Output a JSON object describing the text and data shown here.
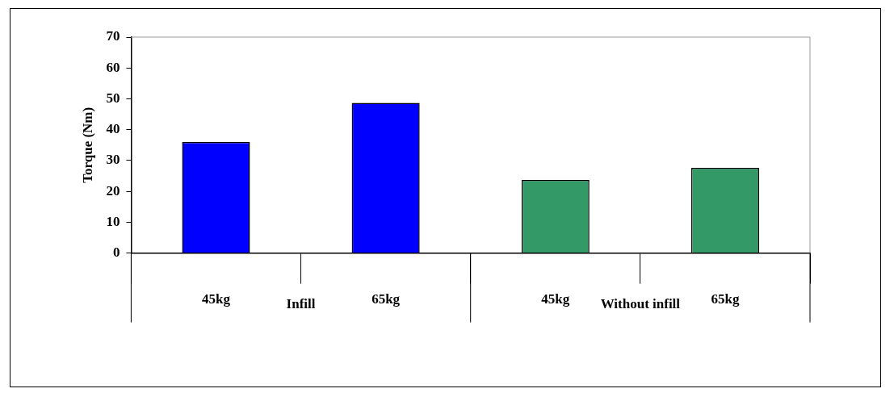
{
  "chart_data": {
    "type": "bar",
    "ylabel": "Torque (Nm)",
    "categories": [
      "45kg",
      "65kg",
      "45kg",
      "65kg"
    ],
    "values": [
      36.0,
      48.7,
      23.7,
      27.6
    ],
    "colors": [
      "#0000ff",
      "#0000ff",
      "#339966",
      "#339966"
    ],
    "ylim": [
      0,
      70
    ],
    "yticks": [
      0,
      10,
      20,
      30,
      40,
      50,
      60,
      70
    ],
    "grid": false,
    "annotations": [
      "Infill",
      "Without infill"
    ]
  }
}
